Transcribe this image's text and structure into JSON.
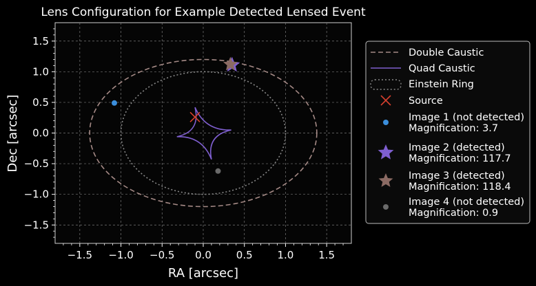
{
  "chart_data": {
    "type": "scatter",
    "title": "Lens Configuration for Example Detected Lensed Event",
    "xlabel": "RA [arcsec]",
    "ylabel": "Dec [arcsec]",
    "xlim": [
      -1.8,
      1.8
    ],
    "ylim": [
      -1.8,
      1.8
    ],
    "x_ticks": [
      -1.5,
      -1.0,
      -0.5,
      0.0,
      0.5,
      1.0,
      1.5
    ],
    "x_tick_labels": [
      "−1.5",
      "−1.0",
      "−0.5",
      "0.0",
      "0.5",
      "1.0",
      "1.5"
    ],
    "y_ticks": [
      1.5,
      1.0,
      0.5,
      0.0,
      -0.5,
      -1.0,
      -1.5
    ],
    "y_tick_labels": [
      "1.5",
      "1.0",
      "0.5",
      "0.0",
      "−0.5",
      "−1.0",
      "−1.5"
    ],
    "grid": true,
    "legend_position": "right, outside plot",
    "curves": {
      "double_caustic": {
        "label": "Double Caustic",
        "shape": "ellipse",
        "center": [
          0.0,
          0.0
        ],
        "rx": 1.38,
        "ry": 1.2,
        "color": "#a58a86",
        "style": "dashed"
      },
      "quad_caustic": {
        "label": "Quad Caustic",
        "shape": "astroid",
        "color": "#7f5fd0",
        "style": "solid",
        "cusps": [
          [
            -0.1,
            0.42
          ],
          [
            0.34,
            0.05
          ],
          [
            0.1,
            -0.43
          ],
          [
            -0.32,
            -0.06
          ]
        ]
      },
      "einstein_ring": {
        "label": "Einstein Ring",
        "shape": "ellipse",
        "center": [
          0.0,
          0.0
        ],
        "rx": 1.0,
        "ry": 1.0,
        "color": "#8a8a8a",
        "style": "dotted"
      }
    },
    "source": {
      "label": "Source",
      "x": -0.1,
      "y": 0.26,
      "marker": "x",
      "color": "#d6402e"
    },
    "images": [
      {
        "label": "Image 1 (not detected)",
        "magnification_label": "Magnification: 3.7",
        "x": -1.08,
        "y": 0.49,
        "marker": "dot",
        "color": "#3b8edb",
        "size": 4
      },
      {
        "label": "Image 2 (detected)",
        "magnification_label": "Magnification: 117.7",
        "x": 0.35,
        "y": 1.11,
        "marker": "star",
        "color": "#7f5fd0",
        "size": 12
      },
      {
        "label": "Image 3 (detected)",
        "magnification_label": "Magnification: 118.4",
        "x": 0.33,
        "y": 1.12,
        "marker": "star",
        "color": "#8b6a63",
        "size": 11
      },
      {
        "label": "Image 4 (not detected)",
        "magnification_label": "Magnification: 0.9",
        "x": 0.18,
        "y": -0.62,
        "marker": "dot",
        "color": "#6a6a6a",
        "size": 4
      }
    ]
  }
}
